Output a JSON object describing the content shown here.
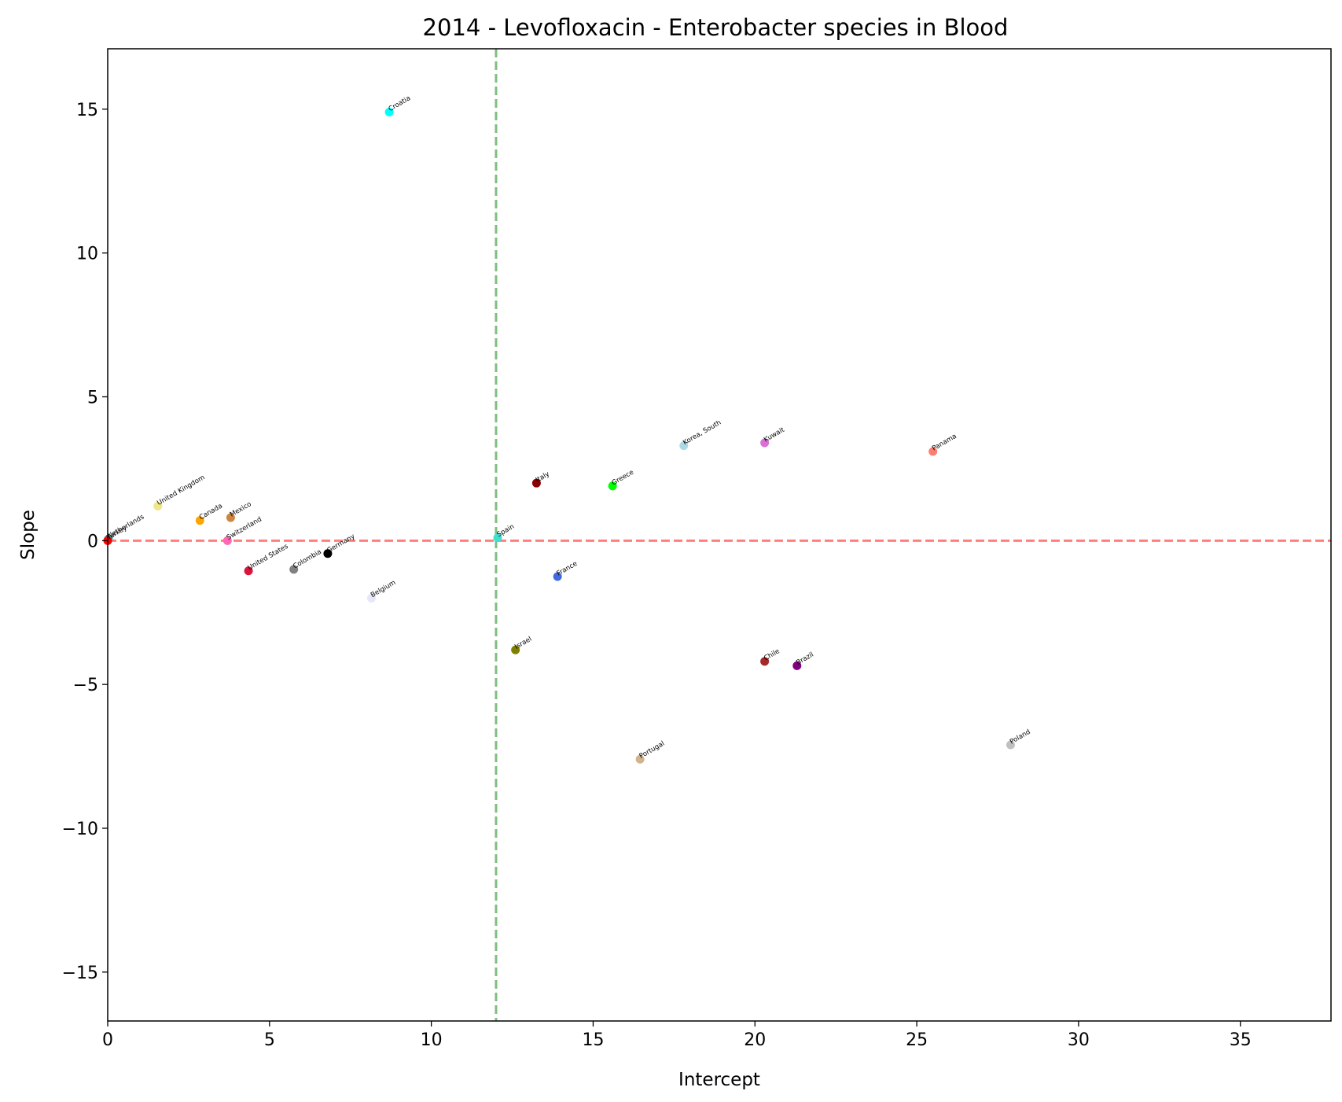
{
  "chart_data": {
    "type": "scatter",
    "title": "2014 - Levofloxacin - Enterobacter species in Blood",
    "xlabel": "Intercept",
    "ylabel": "Slope",
    "xlim": [
      0,
      37.8
    ],
    "ylim": [
      -16.7,
      17.1
    ],
    "xticks": [
      0,
      5,
      10,
      15,
      20,
      25,
      30,
      35
    ],
    "yticks": [
      -15,
      -10,
      -5,
      0,
      5,
      10,
      15
    ],
    "grid": false,
    "reference_lines": [
      {
        "orientation": "horizontal",
        "value": 0,
        "color": "#ff7f7f",
        "style": "dashed"
      },
      {
        "orientation": "vertical",
        "value": 12,
        "color": "#7fbf7f",
        "style": "dashed"
      }
    ],
    "points": [
      {
        "label": "Croatia",
        "x": 8.7,
        "y": 14.9,
        "color": "#00ffff"
      },
      {
        "label": "Netherlands",
        "x": 0.02,
        "y": 0.05,
        "color": "#20b2aa"
      },
      {
        "label": "Turkey",
        "x": 0.0,
        "y": 0.0,
        "color": "#ff0000"
      },
      {
        "label": "United Kingdom",
        "x": 1.55,
        "y": 1.2,
        "color": "#f0e68c"
      },
      {
        "label": "Canada",
        "x": 2.85,
        "y": 0.7,
        "color": "#ffa500"
      },
      {
        "label": "Mexico",
        "x": 3.8,
        "y": 0.8,
        "color": "#cd853f"
      },
      {
        "label": "Switzerland",
        "x": 3.7,
        "y": 0.0,
        "color": "#ff69b4"
      },
      {
        "label": "United States",
        "x": 4.35,
        "y": -1.05,
        "color": "#dc143c"
      },
      {
        "label": "Colombia",
        "x": 5.75,
        "y": -1.0,
        "color": "#808080"
      },
      {
        "label": "Germany",
        "x": 6.8,
        "y": -0.45,
        "color": "#000000"
      },
      {
        "label": "Belgium",
        "x": 8.15,
        "y": -2.0,
        "color": "#e6e6fa"
      },
      {
        "label": "Spain",
        "x": 12.05,
        "y": 0.1,
        "color": "#40e0d0"
      },
      {
        "label": "Italy",
        "x": 13.25,
        "y": 2.0,
        "color": "#8b0000"
      },
      {
        "label": "France",
        "x": 13.9,
        "y": -1.25,
        "color": "#4169e1"
      },
      {
        "label": "Greece",
        "x": 15.6,
        "y": 1.9,
        "color": "#00ff00"
      },
      {
        "label": "Israel",
        "x": 12.6,
        "y": -3.8,
        "color": "#808000"
      },
      {
        "label": "Korea, South",
        "x": 17.8,
        "y": 3.3,
        "color": "#add8e6"
      },
      {
        "label": "Kuwait",
        "x": 20.3,
        "y": 3.4,
        "color": "#da70d6"
      },
      {
        "label": "Panama",
        "x": 25.5,
        "y": 3.1,
        "color": "#fa8072"
      },
      {
        "label": "Chile",
        "x": 20.3,
        "y": -4.2,
        "color": "#a52a2a"
      },
      {
        "label": "Brazil",
        "x": 21.3,
        "y": -4.35,
        "color": "#800080"
      },
      {
        "label": "Portugal",
        "x": 16.45,
        "y": -7.6,
        "color": "#d2b48c"
      },
      {
        "label": "Poland",
        "x": 27.9,
        "y": -7.1,
        "color": "#c0c0c0"
      }
    ]
  }
}
